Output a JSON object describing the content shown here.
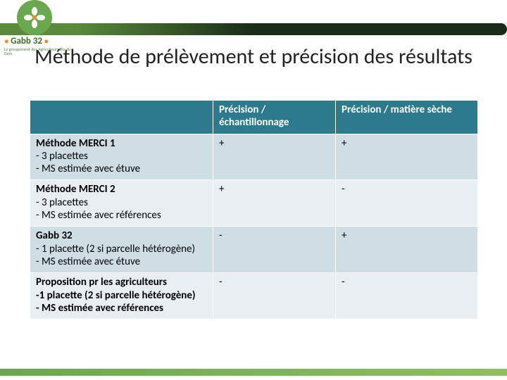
{
  "brand": {
    "name": "Gabb 32",
    "tagline": "Le groupement des Agriculteurs Bio du Gers",
    "dot_color": "#e69138"
  },
  "title": "Méthode de prélèvement et précision des résultats",
  "table": {
    "header_bg": "#2d7a8c",
    "row_bg_odd": "#cfdde4",
    "row_bg_even": "#e8eef2",
    "text_color": "#000000",
    "header_text_color": "#ffffff",
    "columns": [
      "",
      "Précision / échantillonnage",
      "Précision / matière sèche"
    ],
    "rows": [
      {
        "title": "Méthode MERCI 1",
        "details": [
          "- 3 placettes",
          "- MS estimée avec étuve"
        ],
        "bold_details": false,
        "values": [
          "+",
          "+"
        ]
      },
      {
        "title": "Méthode MERCI 2",
        "details": [
          "-   3 placettes",
          "-   MS estimée avec références"
        ],
        "bold_details": false,
        "values": [
          "+",
          "-"
        ]
      },
      {
        "title": "Gabb 32",
        "details": [
          "-   1 placette (2 si parcelle hétérogène)",
          "-   MS estimée avec étuve"
        ],
        "bold_details": false,
        "values": [
          "-",
          "+"
        ]
      },
      {
        "title": "Proposition pr les agriculteurs",
        "details": [
          "-1 placette (2 si parcelle hétérogène)",
          "- MS estimée avec références"
        ],
        "bold_details": true,
        "values": [
          "-",
          "-"
        ]
      }
    ]
  },
  "colors": {
    "header_bar_start": "#5a8a3a",
    "header_bar_end": "#1a2b1a",
    "logo_bg": "#6aa84f",
    "footer_start": "#6aa84f",
    "footer_end": "#8fbf5f"
  }
}
